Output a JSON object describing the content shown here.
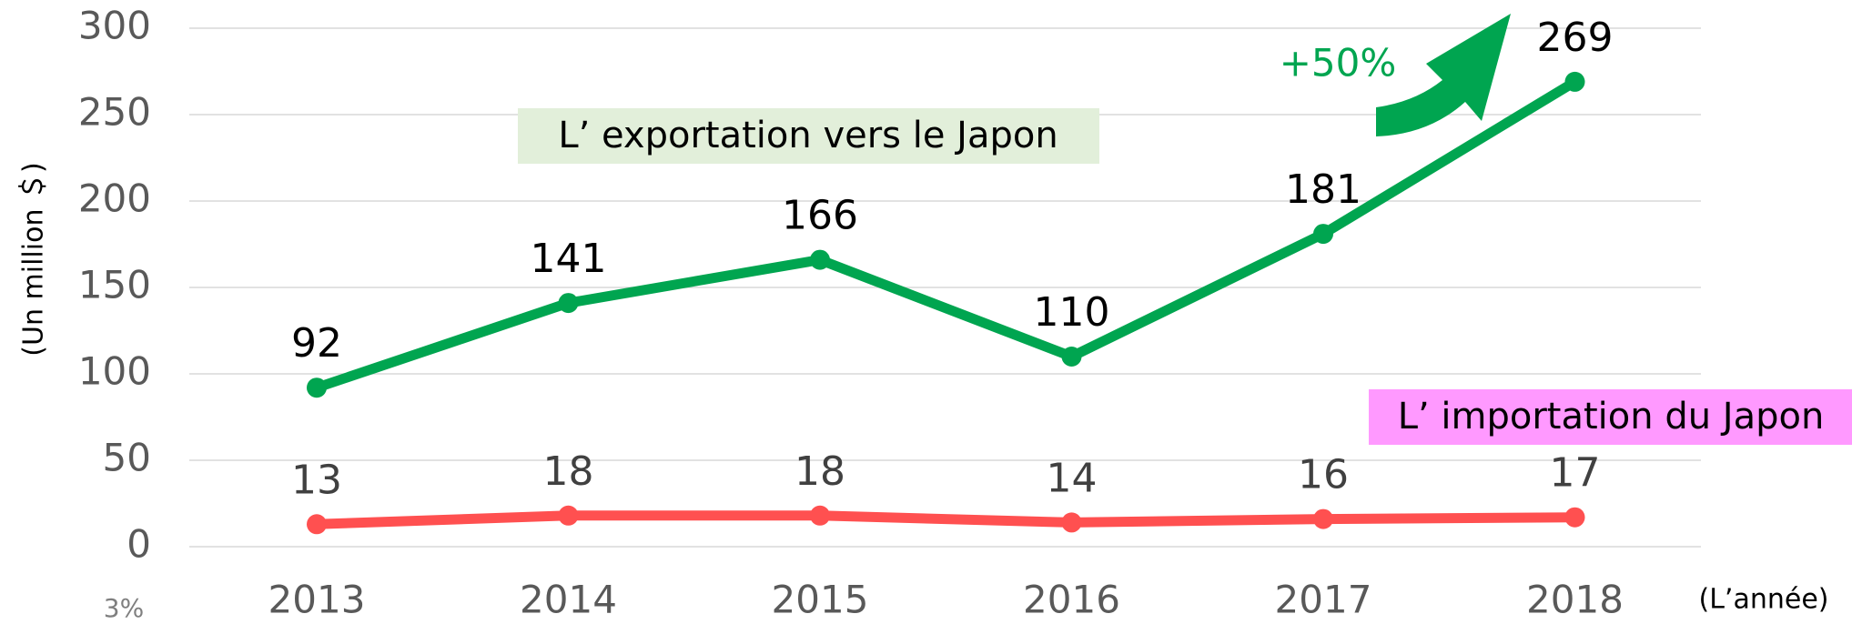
{
  "chart_data": {
    "type": "line",
    "categories": [
      "2013",
      "2014",
      "2015",
      "2016",
      "2017",
      "2018"
    ],
    "series": [
      {
        "name": "L’ exportation vers le Japon",
        "color": "#00a550",
        "values": [
          92,
          141,
          166,
          110,
          181,
          269
        ]
      },
      {
        "name": "L’ importation du Japon",
        "color": "#ff5050",
        "values": [
          13,
          18,
          18,
          14,
          16,
          17
        ]
      }
    ],
    "ylim": [
      0,
      300
    ],
    "yticks": [
      0,
      50,
      100,
      150,
      200,
      250,
      300
    ],
    "y_label": "(Un million ＄)",
    "x_label": "(L’année)",
    "annotation": "+50%",
    "footnote": "3%",
    "grid": true
  }
}
